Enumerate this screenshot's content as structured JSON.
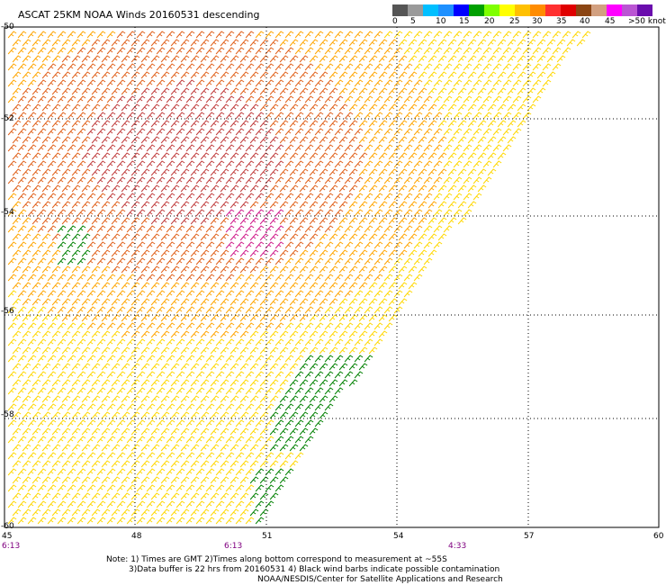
{
  "title": "ASCAT 25KM NOAA Winds 20160531 descending",
  "color_scale": {
    "colors": [
      "#555555",
      "#9a9a9a",
      "#00bfff",
      "#1e90ff",
      "#0000ff",
      "#00a000",
      "#7fff00",
      "#ffff00",
      "#ffc000",
      "#ff8c00",
      "#ff3030",
      "#e00000",
      "#8b4513",
      "#d2a080",
      "#ff00ff",
      "#ba55d3",
      "#6a0dad"
    ],
    "labels": [
      "0",
      "5",
      "10",
      "15",
      "20",
      "25",
      "30",
      "35",
      "40",
      "45",
      ">50 knots"
    ]
  },
  "axes": {
    "y_labels": [
      "-50",
      "-52",
      "-54",
      "-56",
      "-58",
      "-60"
    ],
    "x_labels": [
      "45",
      "48",
      "51",
      "54",
      "57",
      "60"
    ]
  },
  "pass_times": [
    "6:13",
    "6:13",
    "4:33"
  ],
  "notes": [
    "Note: 1) Times are GMT 2)Times along bottom correspond to measurement at ~55S",
    "3)Data buffer is 22 hrs from 20160531 4) Black wind barbs indicate possible contamination",
    "NOAA/NESDIS/Center for Satellite Applications and Research"
  ],
  "map_colors": {
    "barb_light": "#ffd700",
    "barb_mid": "#ffa500",
    "barb_strong": "#e0601a",
    "barb_max": "#c03c3c",
    "barb_extreme": "#d01c8b",
    "barb_contaminated": "#008000",
    "grid": "#000000"
  }
}
